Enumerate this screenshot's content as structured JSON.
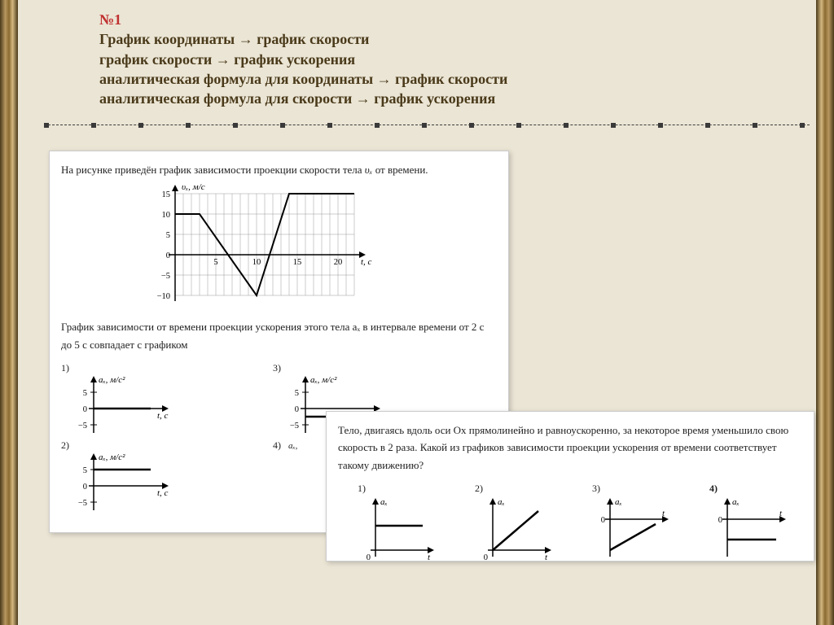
{
  "header": {
    "num": "№1",
    "line1": "График координаты → график скорости",
    "line2": "график скорости → график ускорения",
    "line3": "аналитическая формула для координаты → график скорости",
    "line4": "аналитическая формула для скорости → график ускорения"
  },
  "problem1": {
    "intro": "На рисунке приведён график зависимости проекции скорости тела υₓ от времени.",
    "intro_pre": "На рисунке приведён график зависимости проекции скорости тела ",
    "intro_var": "υₓ",
    "intro_post": " от времени.",
    "question": "График зависимости от времени проекции ускорения этого тела aₓ в интервале времени от 2 с до 5 с совпадает с графиком",
    "main_chart": {
      "y_label": "υₓ, м/с",
      "x_label": "t, с",
      "x_ticks": [
        5,
        10,
        15,
        20
      ],
      "y_ticks": [
        -10,
        -5,
        0,
        5,
        10,
        15
      ],
      "xlim": [
        0,
        22
      ],
      "ylim": [
        -12,
        17
      ],
      "line_color": "#000000",
      "grid_color": "#888888",
      "background": "#ffffff",
      "points": [
        [
          0,
          10
        ],
        [
          3,
          10
        ],
        [
          10,
          -10
        ],
        [
          14,
          15
        ],
        [
          22,
          15
        ]
      ]
    },
    "option_charts": {
      "y_label": "aₓ, м/с²",
      "x_label": "t, с",
      "y_ticks": [
        -5,
        0,
        5
      ],
      "options": [
        {
          "n": "1)",
          "segment_y": 0
        },
        {
          "n": "2)",
          "segment_y": 5
        },
        {
          "n": "3)",
          "segment_y": -2.5
        },
        {
          "n": "4)",
          "segment_y_label": "aₓ:"
        }
      ]
    }
  },
  "problem2": {
    "text": "Тело, двигаясь вдоль оси Ox прямолинейно и равноускоренно, за некоторое время уменьшило свою скорость в 2 раза. Какой из графиков зависимости проекции ускорения от времени соответствует такому движению?",
    "options": [
      "1)",
      "2)",
      "3)",
      "4)"
    ],
    "bold_opt": "4)",
    "axis_y": "aₓ",
    "axis_x": "t"
  },
  "style": {
    "page_bg": "#ebe5d5",
    "border_gold": "#b89860",
    "text_color": "#4a3a1a",
    "accent_red": "#c03030"
  }
}
